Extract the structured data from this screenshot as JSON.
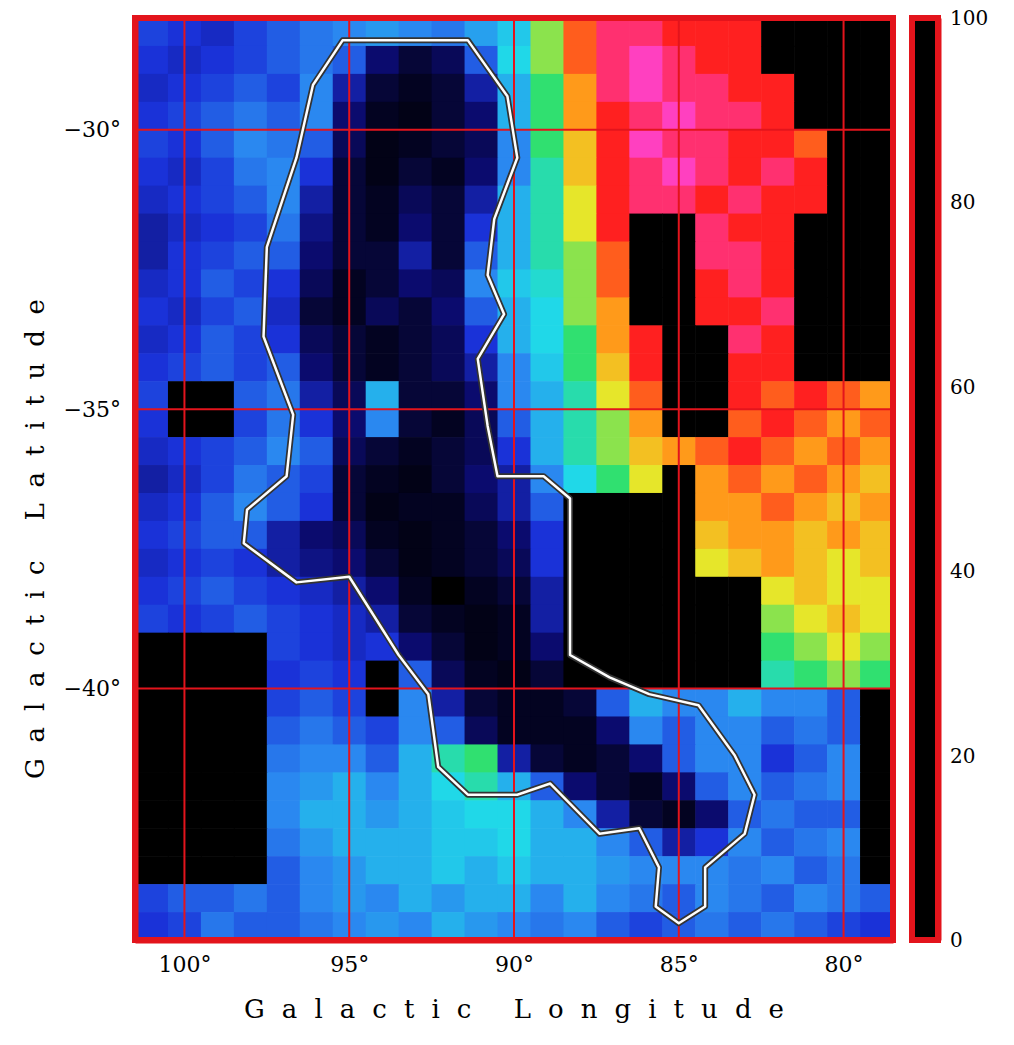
{
  "chart_data": {
    "type": "heatmap",
    "xlabel": "Galactic Longitude",
    "ylabel": "Galactic Latitude",
    "xlim": [
      101.5,
      78.5
    ],
    "ylim": [
      -44.5,
      -28.0
    ],
    "xticks": [
      {
        "value": 100,
        "label": "100°"
      },
      {
        "value": 95,
        "label": "95°"
      },
      {
        "value": 90,
        "label": "90°"
      },
      {
        "value": 85,
        "label": "85°"
      },
      {
        "value": 80,
        "label": "80°"
      }
    ],
    "yticks": [
      {
        "value": -30,
        "label": "−30°"
      },
      {
        "value": -35,
        "label": "−35°"
      },
      {
        "value": -40,
        "label": "−40°"
      }
    ],
    "grid": true,
    "colorbar": {
      "lim": [
        0,
        100
      ],
      "ticks": [
        0,
        20,
        40,
        60,
        80,
        100
      ]
    },
    "x": [
      101,
      100,
      99,
      98,
      97,
      96,
      95,
      94,
      93,
      92,
      91,
      90,
      89,
      88,
      87,
      86,
      85,
      84,
      83,
      82,
      81,
      80,
      79
    ],
    "y": [
      -28.25,
      -28.75,
      -29.25,
      -29.75,
      -30.25,
      -30.75,
      -31.25,
      -31.75,
      -32.25,
      -32.75,
      -33.25,
      -33.75,
      -34.25,
      -34.75,
      -35.25,
      -35.75,
      -36.25,
      -36.75,
      -37.25,
      -37.75,
      -38.25,
      -38.75,
      -39.25,
      -39.75,
      -40.25,
      -40.75,
      -41.25,
      -41.75,
      -42.25,
      -42.75,
      -43.25,
      -43.75,
      -44.25
    ],
    "z": [
      [
        22,
        20,
        18,
        22,
        25,
        28,
        30,
        32,
        30,
        28,
        33,
        38,
        55,
        75,
        85,
        85,
        80,
        80,
        80,
        0,
        0,
        0,
        0
      ],
      [
        20,
        18,
        20,
        22,
        25,
        28,
        25,
        10,
        5,
        8,
        25,
        40,
        55,
        75,
        85,
        90,
        85,
        80,
        80,
        0,
        0,
        0,
        0
      ],
      [
        18,
        20,
        22,
        25,
        22,
        30,
        15,
        5,
        3,
        5,
        15,
        35,
        50,
        70,
        85,
        90,
        85,
        85,
        80,
        80,
        0,
        0,
        0
      ],
      [
        20,
        22,
        25,
        28,
        25,
        30,
        10,
        3,
        2,
        5,
        10,
        35,
        50,
        70,
        80,
        85,
        90,
        85,
        85,
        80,
        0,
        0,
        0
      ],
      [
        22,
        20,
        25,
        30,
        28,
        25,
        8,
        2,
        3,
        5,
        8,
        30,
        50,
        65,
        80,
        90,
        85,
        85,
        80,
        80,
        75,
        0,
        0
      ],
      [
        20,
        18,
        22,
        28,
        30,
        20,
        5,
        2,
        5,
        3,
        10,
        30,
        45,
        65,
        80,
        85,
        90,
        85,
        80,
        85,
        80,
        0,
        0
      ],
      [
        18,
        20,
        22,
        25,
        30,
        15,
        5,
        3,
        8,
        5,
        15,
        35,
        45,
        60,
        80,
        85,
        85,
        80,
        85,
        80,
        80,
        0,
        0
      ],
      [
        15,
        18,
        20,
        22,
        28,
        12,
        5,
        3,
        10,
        5,
        20,
        35,
        45,
        60,
        80,
        0,
        0,
        85,
        80,
        80,
        0,
        0,
        0
      ],
      [
        15,
        20,
        22,
        25,
        25,
        10,
        5,
        5,
        15,
        5,
        25,
        35,
        45,
        55,
        75,
        0,
        0,
        85,
        85,
        80,
        0,
        0,
        0
      ],
      [
        18,
        20,
        25,
        22,
        20,
        8,
        3,
        5,
        10,
        8,
        30,
        38,
        42,
        55,
        75,
        0,
        0,
        80,
        85,
        80,
        0,
        0,
        0
      ],
      [
        20,
        18,
        22,
        25,
        18,
        5,
        3,
        8,
        5,
        10,
        25,
        35,
        40,
        55,
        70,
        0,
        0,
        80,
        80,
        85,
        0,
        0,
        0
      ],
      [
        18,
        20,
        25,
        22,
        20,
        8,
        5,
        3,
        5,
        8,
        20,
        35,
        40,
        50,
        70,
        80,
        0,
        0,
        85,
        80,
        0,
        0,
        0
      ],
      [
        20,
        22,
        25,
        22,
        25,
        10,
        5,
        3,
        5,
        8,
        15,
        30,
        38,
        50,
        65,
        80,
        0,
        0,
        80,
        80,
        0,
        0,
        0
      ],
      [
        22,
        0,
        0,
        25,
        28,
        15,
        8,
        35,
        5,
        5,
        10,
        30,
        35,
        45,
        60,
        75,
        0,
        0,
        80,
        75,
        80,
        75,
        70
      ],
      [
        20,
        0,
        0,
        22,
        28,
        20,
        10,
        30,
        5,
        3,
        8,
        25,
        35,
        45,
        55,
        70,
        0,
        0,
        75,
        80,
        75,
        70,
        75
      ],
      [
        18,
        20,
        22,
        25,
        30,
        25,
        8,
        5,
        3,
        5,
        8,
        20,
        35,
        45,
        55,
        65,
        70,
        75,
        80,
        75,
        70,
        75,
        70
      ],
      [
        15,
        18,
        22,
        28,
        25,
        22,
        5,
        3,
        2,
        5,
        10,
        15,
        30,
        40,
        50,
        60,
        0,
        70,
        75,
        70,
        75,
        70,
        65
      ],
      [
        18,
        20,
        25,
        30,
        25,
        20,
        5,
        2,
        3,
        3,
        8,
        15,
        25,
        0,
        0,
        0,
        0,
        70,
        70,
        75,
        70,
        65,
        70
      ],
      [
        20,
        22,
        25,
        25,
        15,
        10,
        8,
        3,
        2,
        3,
        5,
        10,
        20,
        0,
        0,
        0,
        0,
        65,
        70,
        70,
        65,
        70,
        65
      ],
      [
        18,
        20,
        22,
        20,
        15,
        12,
        10,
        5,
        2,
        3,
        5,
        8,
        20,
        0,
        0,
        0,
        0,
        60,
        65,
        70,
        65,
        60,
        65
      ],
      [
        20,
        22,
        25,
        22,
        20,
        18,
        15,
        10,
        3,
        0,
        3,
        5,
        15,
        0,
        0,
        0,
        0,
        0,
        0,
        60,
        65,
        60,
        60
      ],
      [
        22,
        20,
        22,
        25,
        22,
        20,
        18,
        15,
        5,
        3,
        2,
        3,
        15,
        0,
        0,
        0,
        0,
        0,
        0,
        55,
        60,
        65,
        60
      ],
      [
        0,
        0,
        0,
        0,
        22,
        20,
        18,
        20,
        10,
        5,
        2,
        3,
        10,
        0,
        0,
        0,
        0,
        0,
        0,
        50,
        55,
        60,
        55
      ],
      [
        0,
        0,
        0,
        0,
        20,
        22,
        20,
        0,
        25,
        8,
        3,
        2,
        5,
        0,
        0,
        0,
        0,
        0,
        0,
        45,
        50,
        55,
        50
      ],
      [
        0,
        0,
        0,
        0,
        22,
        25,
        22,
        0,
        30,
        15,
        5,
        3,
        3,
        5,
        25,
        35,
        30,
        30,
        35,
        30,
        30,
        25,
        0
      ],
      [
        0,
        0,
        0,
        0,
        25,
        28,
        25,
        22,
        30,
        25,
        8,
        3,
        3,
        3,
        10,
        30,
        25,
        30,
        30,
        25,
        28,
        25,
        0
      ],
      [
        0,
        0,
        0,
        0,
        28,
        30,
        30,
        25,
        35,
        45,
        50,
        15,
        5,
        3,
        5,
        10,
        25,
        30,
        30,
        20,
        25,
        30,
        0
      ],
      [
        0,
        0,
        0,
        0,
        30,
        32,
        35,
        30,
        35,
        40,
        45,
        35,
        25,
        10,
        5,
        3,
        10,
        25,
        30,
        25,
        28,
        30,
        0
      ],
      [
        0,
        0,
        0,
        0,
        30,
        35,
        35,
        32,
        35,
        38,
        40,
        40,
        35,
        30,
        15,
        5,
        3,
        10,
        25,
        28,
        25,
        25,
        0
      ],
      [
        0,
        0,
        0,
        0,
        28,
        32,
        35,
        35,
        35,
        38,
        38,
        40,
        35,
        35,
        30,
        25,
        15,
        20,
        30,
        25,
        28,
        30,
        0
      ],
      [
        0,
        0,
        0,
        0,
        25,
        30,
        32,
        35,
        35,
        38,
        35,
        38,
        35,
        35,
        32,
        30,
        30,
        30,
        28,
        30,
        25,
        28,
        0
      ],
      [
        22,
        25,
        25,
        28,
        25,
        30,
        32,
        30,
        35,
        32,
        35,
        35,
        30,
        35,
        30,
        28,
        25,
        30,
        28,
        25,
        30,
        28,
        25
      ],
      [
        20,
        22,
        28,
        25,
        25,
        28,
        30,
        32,
        30,
        35,
        32,
        30,
        28,
        30,
        25,
        22,
        25,
        28,
        25,
        28,
        25,
        22,
        20
      ]
    ],
    "contour": {
      "x": [
        95.2,
        91.4,
        90.2,
        89.9,
        90.6,
        90.8,
        90.3,
        91.1,
        90.8,
        90.5,
        89.1,
        88.3,
        88.3,
        87.1,
        85.9,
        84.4,
        83.3,
        82.7,
        83.0,
        84.2,
        84.2,
        85.0,
        85.7,
        85.6,
        86.2,
        87.4,
        88.9,
        89.9,
        91.4,
        92.3,
        92.6,
        93.5,
        95.0,
        96.6,
        98.2,
        98.1,
        96.9,
        96.7,
        97.6,
        97.5,
        96.6,
        96.1
      ],
      "y": [
        -28.4,
        -28.4,
        -29.4,
        -30.5,
        -31.6,
        -32.6,
        -33.3,
        -34.1,
        -35.3,
        -36.2,
        -36.2,
        -36.6,
        -39.4,
        -39.8,
        -40.1,
        -40.3,
        -41.2,
        -41.9,
        -42.6,
        -43.2,
        -43.9,
        -44.2,
        -43.9,
        -43.2,
        -42.5,
        -42.6,
        -41.7,
        -41.9,
        -41.9,
        -41.4,
        -40.1,
        -39.4,
        -38.0,
        -38.1,
        -37.4,
        -36.8,
        -36.2,
        -35.1,
        -33.7,
        -32.1,
        -30.5,
        -29.2
      ]
    }
  }
}
